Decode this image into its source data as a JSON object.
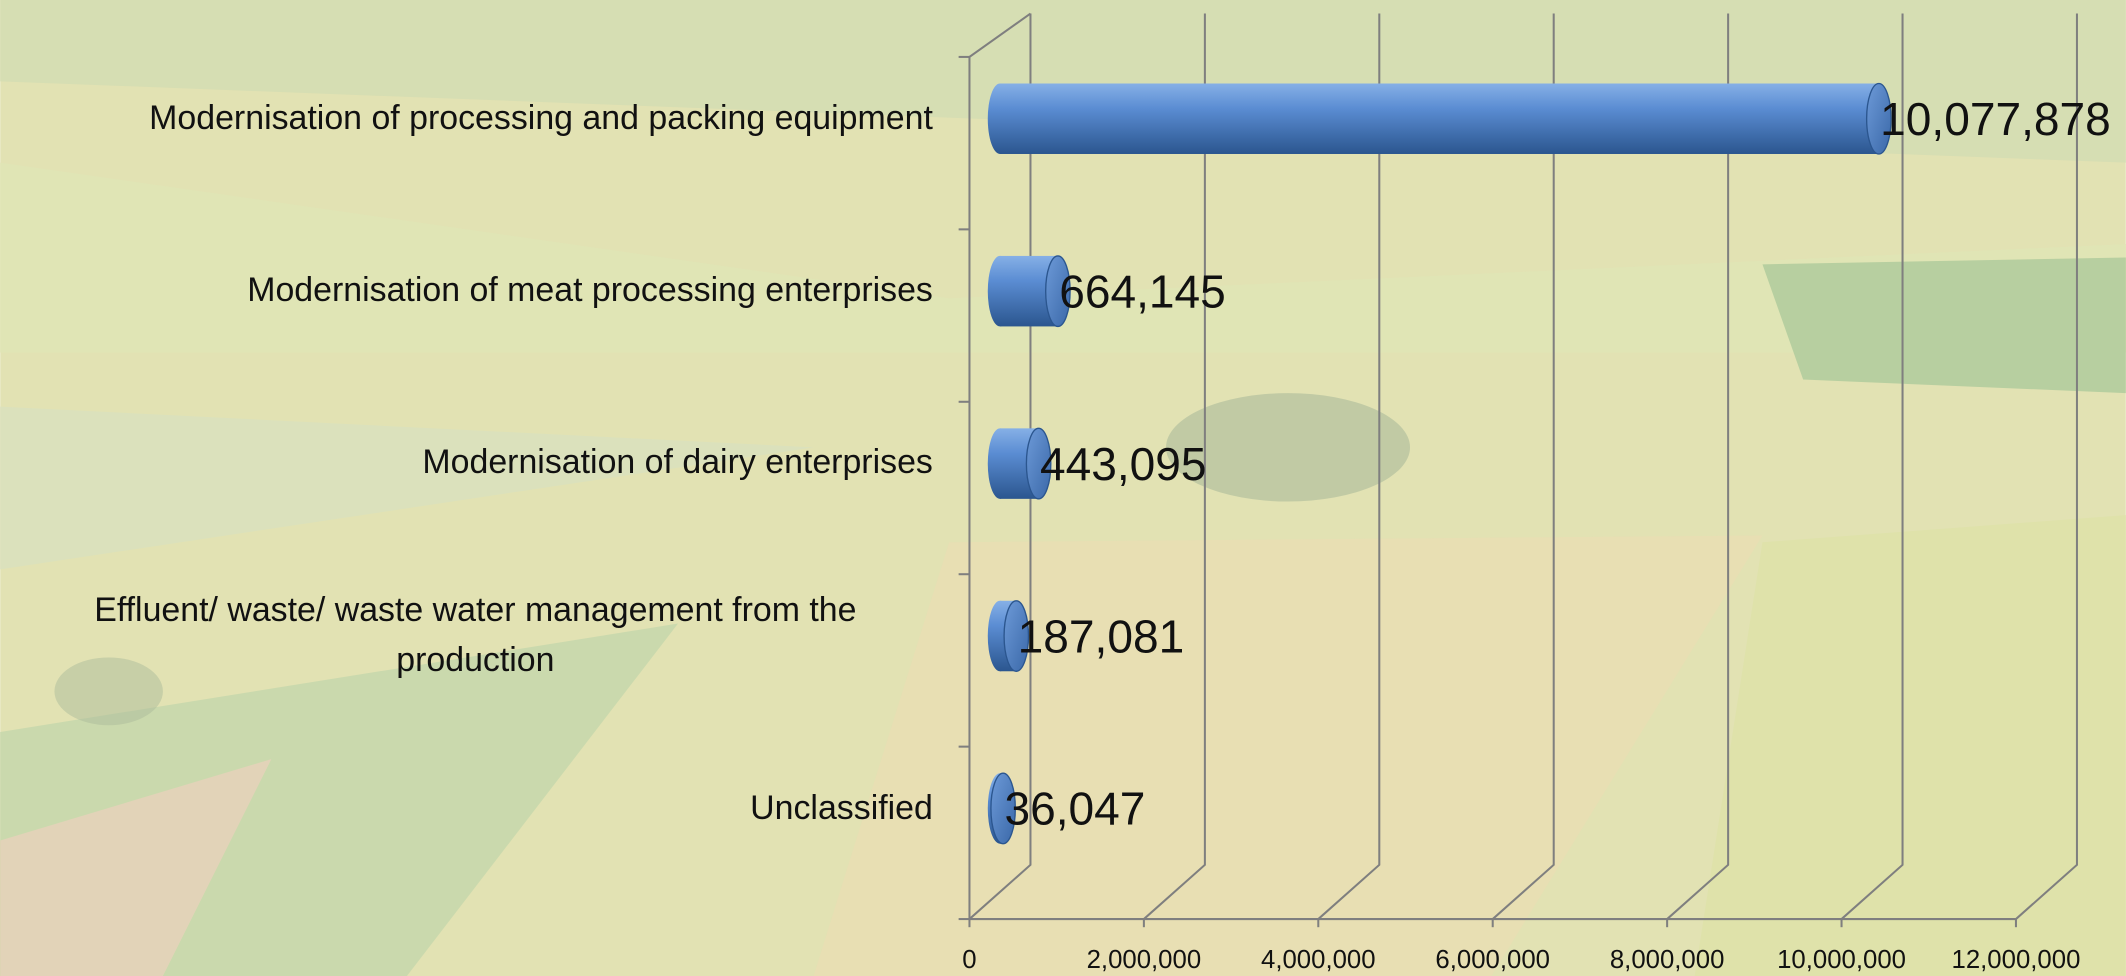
{
  "chart_data": {
    "type": "cylinder-bar",
    "categories": [
      "Modernisation of processing and packing equipment",
      "Modernisation of meat processing enterprises",
      "Modernisation of dairy enterprises",
      "Effluent/ waste/ waste water management from the production",
      "Unclassified"
    ],
    "values": [
      10077878,
      664145,
      443095,
      187081,
      36047
    ],
    "value_labels": [
      "10,077,878",
      "664,145",
      "443,095",
      "187,081",
      "36,047"
    ],
    "color": "#4a7cc4",
    "xlim": [
      0,
      12000000
    ],
    "xticks": [
      0,
      {
        "value": 2000000,
        "label": "2,000,000"
      },
      {
        "value": 4000000,
        "label": "4,000,000"
      },
      {
        "value": 6000000,
        "label": "6,000,000"
      },
      {
        "value": 8000000,
        "label": "8,000,000"
      },
      {
        "value": 10000000,
        "label": "10,000,000"
      },
      {
        "value": 12000000,
        "label": "12,000,000"
      }
    ],
    "grid": true
  }
}
